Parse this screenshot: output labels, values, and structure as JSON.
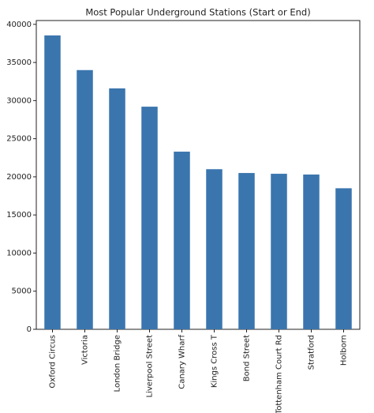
{
  "chart_data": {
    "type": "bar",
    "title": "Most Popular Underground Stations (Start or End)",
    "categories": [
      "Oxford Circus",
      "Victoria",
      "London Bridge",
      "Liverpool Street",
      "Canary Wharf",
      "Kings Cross T",
      "Bond Street",
      "Tottenham Court Rd",
      "Stratford",
      "Holborn"
    ],
    "values": [
      38550,
      34000,
      31600,
      29200,
      23300,
      21000,
      20500,
      20400,
      20300,
      18500
    ],
    "color": "#3a75ae",
    "ylim": [
      0,
      40500
    ],
    "yticks": [
      0,
      5000,
      10000,
      15000,
      20000,
      25000,
      30000,
      35000,
      40000
    ],
    "grid": false
  }
}
